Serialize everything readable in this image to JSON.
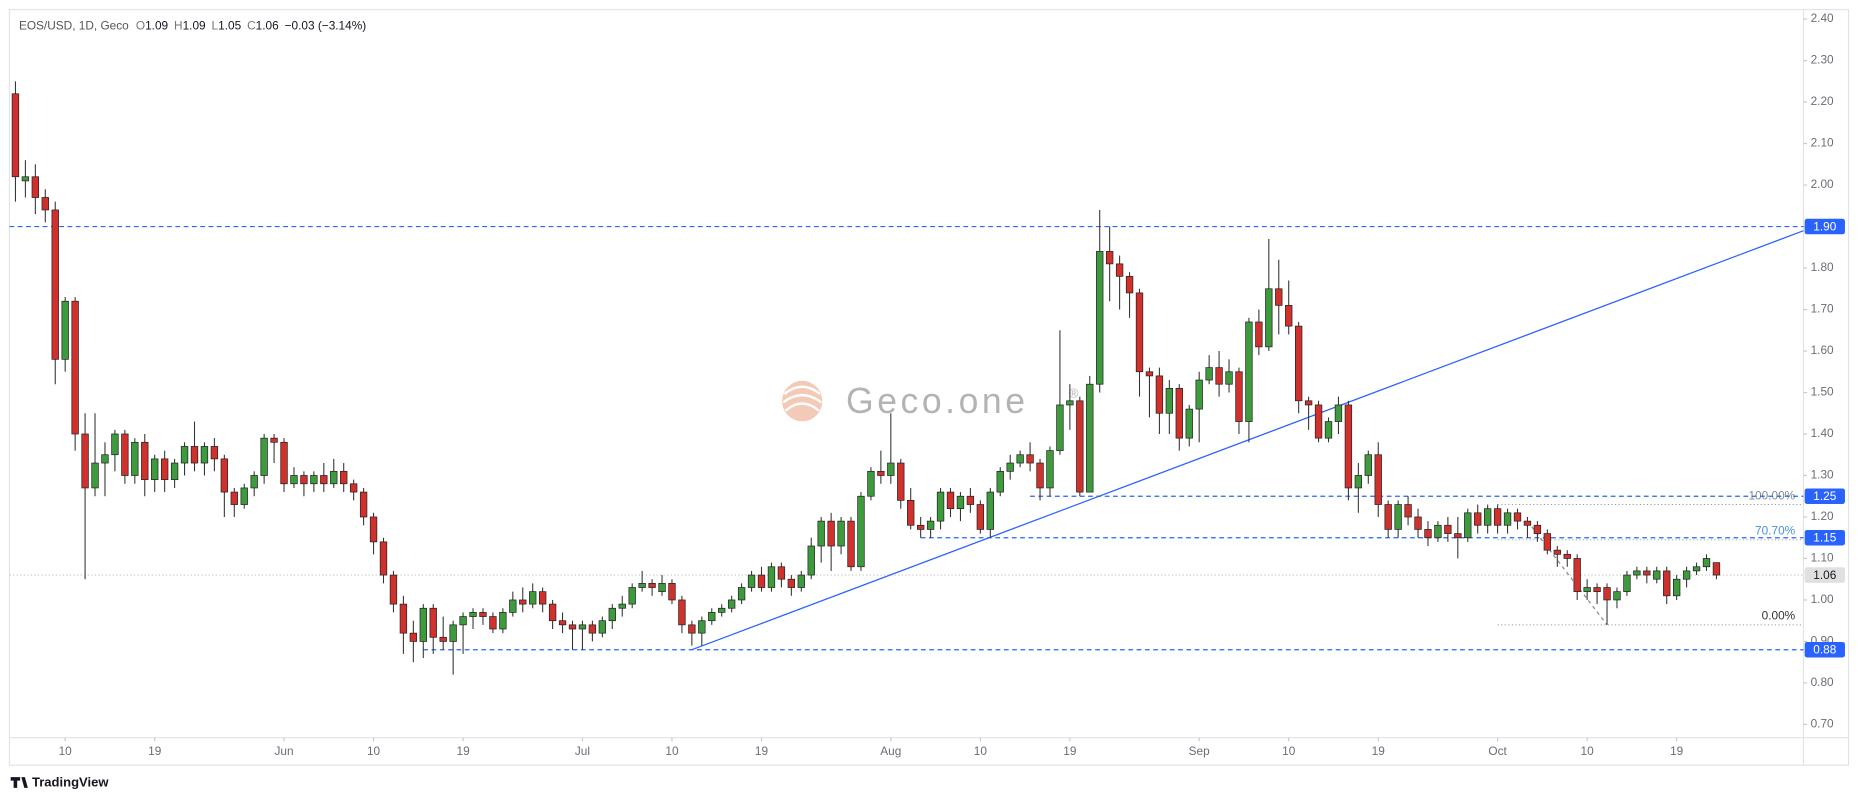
{
  "chart_data": {
    "type": "candlestick",
    "header": {
      "symbol": "EOS/USD, 1D, Geco",
      "fields": [
        {
          "label": "O",
          "value": 1.09
        },
        {
          "label": "H",
          "value": 1.09
        },
        {
          "label": "L",
          "value": 1.05
        },
        {
          "label": "C",
          "value": 1.06
        }
      ],
      "change": "−0.03 (−3.14%)"
    },
    "watermark": "Geco.one",
    "watermark_mark": "®",
    "footer": "TradingView",
    "up_color": "#3d9b3d",
    "down_color": "#d0312d",
    "xlim": [
      -0.6,
      179.75
    ],
    "ylim": [
      0.668,
      2.423
    ],
    "xticks": [
      {
        "value": 5,
        "label": "10"
      },
      {
        "value": 14,
        "label": "19"
      },
      {
        "value": 27,
        "label": "Jun"
      },
      {
        "value": 36,
        "label": "10"
      },
      {
        "value": 45,
        "label": "19"
      },
      {
        "value": 57,
        "label": "Jul"
      },
      {
        "value": 66,
        "label": "10"
      },
      {
        "value": 75,
        "label": "19"
      },
      {
        "value": 88,
        "label": "Aug"
      },
      {
        "value": 97,
        "label": "10"
      },
      {
        "value": 106,
        "label": "19"
      },
      {
        "value": 119,
        "label": "Sep"
      },
      {
        "value": 128,
        "label": "10"
      },
      {
        "value": 137,
        "label": "19"
      },
      {
        "value": 149,
        "label": "Oct"
      },
      {
        "value": 158,
        "label": "10"
      },
      {
        "value": 167,
        "label": "19"
      }
    ],
    "yticks": [
      {
        "value": 2.4,
        "label": "2.40"
      },
      {
        "value": 2.3,
        "label": "2.30"
      },
      {
        "value": 2.2,
        "label": "2.20"
      },
      {
        "value": 2.1,
        "label": "2.10"
      },
      {
        "value": 2.0,
        "label": "2.00"
      },
      {
        "value": 1.9,
        "label": "1.90"
      },
      {
        "value": 1.8,
        "label": "1.80"
      },
      {
        "value": 1.7,
        "label": "1.70"
      },
      {
        "value": 1.6,
        "label": "1.60"
      },
      {
        "value": 1.5,
        "label": "1.50"
      },
      {
        "value": 1.4,
        "label": "1.40"
      },
      {
        "value": 1.3,
        "label": "1.30"
      },
      {
        "value": 1.2,
        "label": "1.20"
      },
      {
        "value": 1.1,
        "label": "1.10"
      },
      {
        "value": 1.0,
        "label": "1.00"
      },
      {
        "value": 0.9,
        "label": "0.90"
      },
      {
        "value": 0.8,
        "label": "0.80"
      },
      {
        "value": 0.7,
        "label": "0.70"
      }
    ],
    "hlines": [
      {
        "value": 1.9,
        "label": "1.90",
        "start": -0.6,
        "color": "#2962ff"
      },
      {
        "value": 1.25,
        "label": "1.25",
        "start": 102,
        "color": "#2962ff"
      },
      {
        "value": 1.15,
        "label": "1.15",
        "start": 91,
        "color": "#2962ff"
      },
      {
        "value": 0.88,
        "label": "0.88",
        "start": 41,
        "color": "#2962ff"
      }
    ],
    "last": {
      "value": 1.06,
      "label": "1.06",
      "color": "#b0b0b0"
    },
    "fib": [
      {
        "label": "100.00%",
        "value": 1.23,
        "start": 149,
        "color": "#888888"
      },
      {
        "label": "70.70%",
        "value": 1.145,
        "start": 149,
        "color": "#4a90e2"
      },
      {
        "label": "0.00%",
        "value": 0.94,
        "start": 149,
        "color": "#333333"
      }
    ],
    "trendline": {
      "points": [
        [
          68,
          0.88
        ],
        [
          179.75,
          1.89
        ]
      ],
      "color": "#2962ff"
    },
    "fib_leg": {
      "points": [
        [
          152,
          1.19
        ],
        [
          160,
          0.94
        ]
      ],
      "color": "#888888"
    },
    "ohlc": [
      [
        2.22,
        2.25,
        1.96,
        2.02
      ],
      [
        2.01,
        2.06,
        1.97,
        2.02
      ],
      [
        2.02,
        2.05,
        1.93,
        1.97
      ],
      [
        1.97,
        1.99,
        1.91,
        1.94
      ],
      [
        1.94,
        1.96,
        1.52,
        1.58
      ],
      [
        1.58,
        1.73,
        1.55,
        1.72
      ],
      [
        1.72,
        1.73,
        1.36,
        1.4
      ],
      [
        1.4,
        1.45,
        1.05,
        1.27
      ],
      [
        1.27,
        1.45,
        1.25,
        1.33
      ],
      [
        1.33,
        1.38,
        1.25,
        1.35
      ],
      [
        1.35,
        1.41,
        1.31,
        1.4
      ],
      [
        1.4,
        1.41,
        1.28,
        1.3
      ],
      [
        1.3,
        1.39,
        1.28,
        1.38
      ],
      [
        1.38,
        1.4,
        1.25,
        1.29
      ],
      [
        1.29,
        1.35,
        1.26,
        1.34
      ],
      [
        1.34,
        1.36,
        1.26,
        1.29
      ],
      [
        1.29,
        1.34,
        1.27,
        1.33
      ],
      [
        1.33,
        1.38,
        1.3,
        1.37
      ],
      [
        1.37,
        1.43,
        1.31,
        1.33
      ],
      [
        1.33,
        1.38,
        1.3,
        1.37
      ],
      [
        1.37,
        1.39,
        1.31,
        1.34
      ],
      [
        1.34,
        1.35,
        1.2,
        1.26
      ],
      [
        1.26,
        1.27,
        1.2,
        1.23
      ],
      [
        1.23,
        1.28,
        1.22,
        1.27
      ],
      [
        1.27,
        1.31,
        1.25,
        1.3
      ],
      [
        1.3,
        1.4,
        1.28,
        1.39
      ],
      [
        1.39,
        1.4,
        1.33,
        1.38
      ],
      [
        1.38,
        1.39,
        1.26,
        1.28
      ],
      [
        1.28,
        1.32,
        1.27,
        1.3
      ],
      [
        1.3,
        1.31,
        1.25,
        1.28
      ],
      [
        1.28,
        1.31,
        1.26,
        1.3
      ],
      [
        1.3,
        1.33,
        1.26,
        1.28
      ],
      [
        1.28,
        1.34,
        1.27,
        1.31
      ],
      [
        1.31,
        1.33,
        1.26,
        1.28
      ],
      [
        1.28,
        1.29,
        1.24,
        1.26
      ],
      [
        1.26,
        1.27,
        1.18,
        1.2
      ],
      [
        1.2,
        1.21,
        1.11,
        1.14
      ],
      [
        1.14,
        1.15,
        1.04,
        1.06
      ],
      [
        1.06,
        1.07,
        0.97,
        0.99
      ],
      [
        0.99,
        1.01,
        0.87,
        0.92
      ],
      [
        0.92,
        0.95,
        0.85,
        0.9
      ],
      [
        0.9,
        0.99,
        0.86,
        0.98
      ],
      [
        0.98,
        0.99,
        0.87,
        0.91
      ],
      [
        0.91,
        0.96,
        0.88,
        0.9
      ],
      [
        0.9,
        0.95,
        0.82,
        0.94
      ],
      [
        0.94,
        0.97,
        0.87,
        0.96
      ],
      [
        0.96,
        0.98,
        0.93,
        0.97
      ],
      [
        0.97,
        0.98,
        0.94,
        0.96
      ],
      [
        0.96,
        0.97,
        0.92,
        0.93
      ],
      [
        0.93,
        0.98,
        0.92,
        0.97
      ],
      [
        0.97,
        1.02,
        0.96,
        1.0
      ],
      [
        1.0,
        1.03,
        0.97,
        0.99
      ],
      [
        0.99,
        1.04,
        0.98,
        1.02
      ],
      [
        1.02,
        1.03,
        0.97,
        0.99
      ],
      [
        0.99,
        1.0,
        0.93,
        0.95
      ],
      [
        0.95,
        0.97,
        0.92,
        0.94
      ],
      [
        0.94,
        0.95,
        0.88,
        0.93
      ],
      [
        0.93,
        0.95,
        0.88,
        0.94
      ],
      [
        0.94,
        0.95,
        0.9,
        0.92
      ],
      [
        0.92,
        0.96,
        0.91,
        0.95
      ],
      [
        0.95,
        0.99,
        0.93,
        0.98
      ],
      [
        0.98,
        1.01,
        0.96,
        0.99
      ],
      [
        0.99,
        1.04,
        0.98,
        1.03
      ],
      [
        1.03,
        1.07,
        1.02,
        1.04
      ],
      [
        1.04,
        1.05,
        1.01,
        1.03
      ],
      [
        1.02,
        1.06,
        1.01,
        1.04
      ],
      [
        1.04,
        1.05,
        0.99,
        1.0
      ],
      [
        1.0,
        1.01,
        0.92,
        0.94
      ],
      [
        0.94,
        0.95,
        0.89,
        0.92
      ],
      [
        0.92,
        0.96,
        0.89,
        0.95
      ],
      [
        0.95,
        0.98,
        0.94,
        0.97
      ],
      [
        0.97,
        0.99,
        0.96,
        0.98
      ],
      [
        0.98,
        1.01,
        0.97,
        1.0
      ],
      [
        1.0,
        1.04,
        0.99,
        1.03
      ],
      [
        1.03,
        1.07,
        1.02,
        1.06
      ],
      [
        1.06,
        1.08,
        1.02,
        1.03
      ],
      [
        1.03,
        1.09,
        1.02,
        1.08
      ],
      [
        1.08,
        1.09,
        1.03,
        1.05
      ],
      [
        1.05,
        1.06,
        1.01,
        1.03
      ],
      [
        1.03,
        1.07,
        1.02,
        1.06
      ],
      [
        1.06,
        1.15,
        1.05,
        1.13
      ],
      [
        1.13,
        1.2,
        1.09,
        1.19
      ],
      [
        1.19,
        1.21,
        1.07,
        1.13
      ],
      [
        1.13,
        1.2,
        1.11,
        1.19
      ],
      [
        1.19,
        1.2,
        1.07,
        1.08
      ],
      [
        1.08,
        1.26,
        1.07,
        1.25
      ],
      [
        1.25,
        1.32,
        1.24,
        1.31
      ],
      [
        1.31,
        1.36,
        1.28,
        1.3
      ],
      [
        1.3,
        1.45,
        1.28,
        1.33
      ],
      [
        1.33,
        1.34,
        1.22,
        1.24
      ],
      [
        1.24,
        1.27,
        1.17,
        1.18
      ],
      [
        1.18,
        1.2,
        1.15,
        1.17
      ],
      [
        1.17,
        1.2,
        1.15,
        1.19
      ],
      [
        1.19,
        1.27,
        1.17,
        1.26
      ],
      [
        1.26,
        1.27,
        1.2,
        1.22
      ],
      [
        1.22,
        1.26,
        1.19,
        1.25
      ],
      [
        1.25,
        1.27,
        1.21,
        1.23
      ],
      [
        1.23,
        1.24,
        1.16,
        1.17
      ],
      [
        1.17,
        1.27,
        1.15,
        1.26
      ],
      [
        1.26,
        1.32,
        1.25,
        1.31
      ],
      [
        1.31,
        1.35,
        1.29,
        1.33
      ],
      [
        1.33,
        1.36,
        1.32,
        1.35
      ],
      [
        1.35,
        1.38,
        1.31,
        1.33
      ],
      [
        1.33,
        1.34,
        1.24,
        1.27
      ],
      [
        1.27,
        1.37,
        1.25,
        1.36
      ],
      [
        1.36,
        1.65,
        1.35,
        1.47
      ],
      [
        1.47,
        1.52,
        1.41,
        1.48
      ],
      [
        1.48,
        1.49,
        1.25,
        1.26
      ],
      [
        1.26,
        1.54,
        1.26,
        1.52
      ],
      [
        1.52,
        1.94,
        1.5,
        1.84
      ],
      [
        1.84,
        1.9,
        1.72,
        1.81
      ],
      [
        1.81,
        1.83,
        1.7,
        1.78
      ],
      [
        1.78,
        1.79,
        1.68,
        1.74
      ],
      [
        1.74,
        1.75,
        1.49,
        1.55
      ],
      [
        1.55,
        1.56,
        1.44,
        1.54
      ],
      [
        1.54,
        1.56,
        1.4,
        1.45
      ],
      [
        1.45,
        1.53,
        1.4,
        1.51
      ],
      [
        1.51,
        1.52,
        1.36,
        1.39
      ],
      [
        1.39,
        1.47,
        1.37,
        1.46
      ],
      [
        1.46,
        1.55,
        1.38,
        1.53
      ],
      [
        1.53,
        1.59,
        1.52,
        1.56
      ],
      [
        1.56,
        1.6,
        1.49,
        1.52
      ],
      [
        1.52,
        1.58,
        1.5,
        1.55
      ],
      [
        1.55,
        1.56,
        1.4,
        1.43
      ],
      [
        1.43,
        1.68,
        1.38,
        1.67
      ],
      [
        1.67,
        1.7,
        1.59,
        1.61
      ],
      [
        1.61,
        1.87,
        1.6,
        1.75
      ],
      [
        1.75,
        1.82,
        1.64,
        1.71
      ],
      [
        1.71,
        1.77,
        1.64,
        1.66
      ],
      [
        1.66,
        1.67,
        1.45,
        1.48
      ],
      [
        1.48,
        1.49,
        1.41,
        1.47
      ],
      [
        1.47,
        1.48,
        1.38,
        1.39
      ],
      [
        1.39,
        1.44,
        1.38,
        1.43
      ],
      [
        1.43,
        1.49,
        1.4,
        1.47
      ],
      [
        1.47,
        1.48,
        1.24,
        1.27
      ],
      [
        1.27,
        1.33,
        1.21,
        1.3
      ],
      [
        1.3,
        1.36,
        1.28,
        1.35
      ],
      [
        1.35,
        1.38,
        1.2,
        1.23
      ],
      [
        1.23,
        1.24,
        1.15,
        1.17
      ],
      [
        1.17,
        1.24,
        1.15,
        1.23
      ],
      [
        1.23,
        1.25,
        1.18,
        1.2
      ],
      [
        1.2,
        1.22,
        1.15,
        1.17
      ],
      [
        1.17,
        1.19,
        1.13,
        1.15
      ],
      [
        1.15,
        1.19,
        1.14,
        1.18
      ],
      [
        1.18,
        1.2,
        1.14,
        1.16
      ],
      [
        1.16,
        1.2,
        1.1,
        1.15
      ],
      [
        1.15,
        1.22,
        1.14,
        1.21
      ],
      [
        1.21,
        1.23,
        1.16,
        1.18
      ],
      [
        1.18,
        1.23,
        1.16,
        1.22
      ],
      [
        1.22,
        1.23,
        1.16,
        1.18
      ],
      [
        1.18,
        1.22,
        1.16,
        1.21
      ],
      [
        1.21,
        1.22,
        1.17,
        1.19
      ],
      [
        1.19,
        1.2,
        1.15,
        1.18
      ],
      [
        1.18,
        1.19,
        1.14,
        1.16
      ],
      [
        1.16,
        1.17,
        1.11,
        1.12
      ],
      [
        1.12,
        1.13,
        1.08,
        1.11
      ],
      [
        1.11,
        1.12,
        1.08,
        1.1
      ],
      [
        1.1,
        1.11,
        1.0,
        1.02
      ],
      [
        1.02,
        1.05,
        1.0,
        1.03
      ],
      [
        1.03,
        1.04,
        0.99,
        1.02
      ],
      [
        1.03,
        1.04,
        0.94,
        1.0
      ],
      [
        1.0,
        1.03,
        0.98,
        1.02
      ],
      [
        1.02,
        1.07,
        1.01,
        1.06
      ],
      [
        1.06,
        1.08,
        1.05,
        1.07
      ],
      [
        1.07,
        1.08,
        1.04,
        1.06
      ],
      [
        1.05,
        1.08,
        1.04,
        1.07
      ],
      [
        1.07,
        1.08,
        0.99,
        1.01
      ],
      [
        1.01,
        1.06,
        1.0,
        1.05
      ],
      [
        1.05,
        1.08,
        1.03,
        1.07
      ],
      [
        1.07,
        1.09,
        1.06,
        1.08
      ],
      [
        1.08,
        1.11,
        1.07,
        1.1
      ],
      [
        1.09,
        1.09,
        1.05,
        1.06
      ]
    ]
  }
}
